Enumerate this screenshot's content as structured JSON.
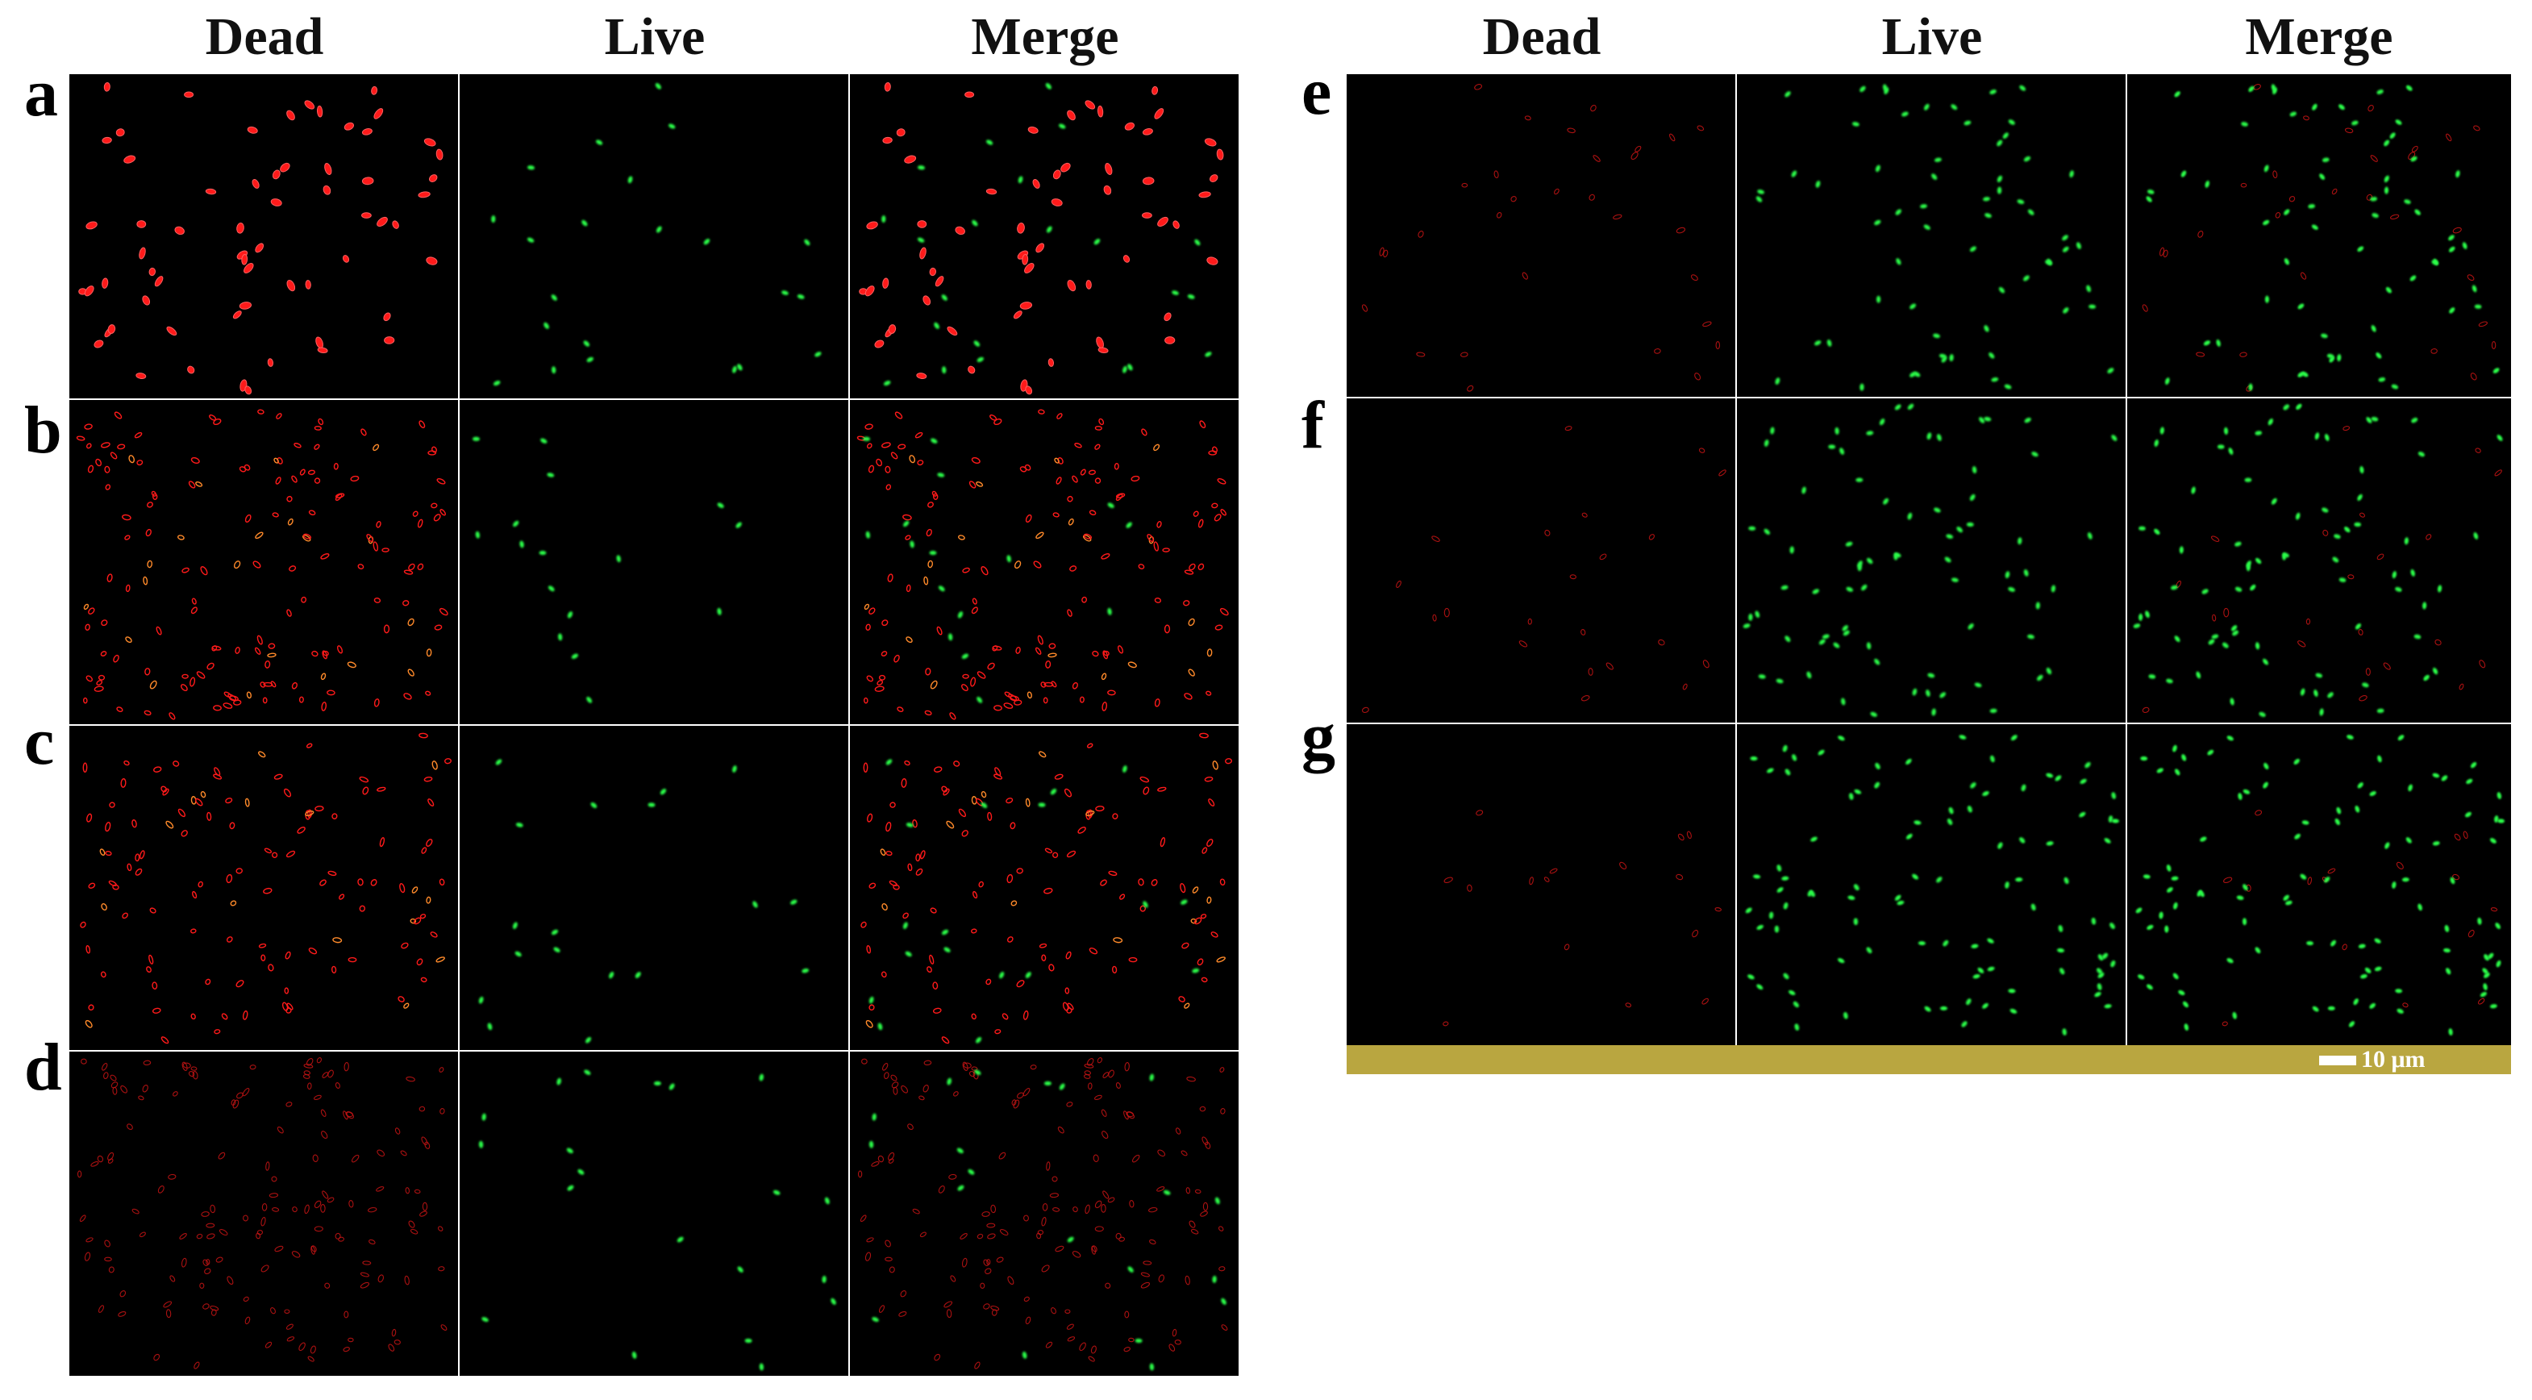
{
  "headers_left": [
    "Dead",
    "Live",
    "Merge"
  ],
  "headers_right": [
    "Dead",
    "Live",
    "Merge"
  ],
  "rows_left": [
    {
      "label": "a",
      "dead": 62,
      "live": 22,
      "dead_style": "bright"
    },
    {
      "label": "b",
      "dead": 150,
      "live": 16,
      "dead_style": "ring"
    },
    {
      "label": "c",
      "dead": 115,
      "live": 18,
      "dead_style": "ring"
    },
    {
      "label": "d",
      "dead": 150,
      "live": 20,
      "dead_style": "faint"
    }
  ],
  "rows_right": [
    {
      "label": "e",
      "dead": 30,
      "live": 62,
      "dead_style": "faint"
    },
    {
      "label": "f",
      "dead": 22,
      "live": 75,
      "dead_style": "faint"
    },
    {
      "label": "g",
      "dead": 16,
      "live": 95,
      "dead_style": "faint"
    }
  ],
  "scale_bar_label": "10 μm",
  "colors": {
    "dead": "#ff1a1a",
    "live": "#2bff4a",
    "background": "#000000",
    "scale_strip": "#b9a640"
  }
}
